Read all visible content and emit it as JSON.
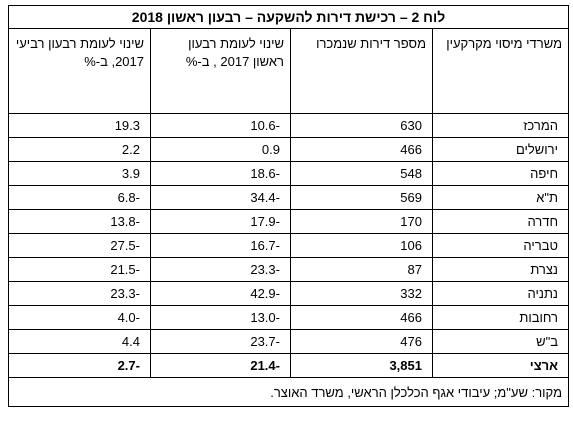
{
  "table": {
    "title": "לוח 2 – רכישת דירות להשקעה – רבעון ראשון 2018",
    "headers": [
      "משרדי מיסוי מקרקעין",
      "מספר דירות שנמכרו",
      "שינוי לעומת רבעון ראשון 2017 , ב-%",
      "שינוי לעומת רבעון רביעי 2017, ב-%"
    ],
    "rows": [
      [
        "המרכז",
        "630",
        "-10.6",
        "19.3"
      ],
      [
        "ירושלים",
        "466",
        "0.9",
        "2.2"
      ],
      [
        "חיפה",
        "548",
        "-18.6",
        "3.9"
      ],
      [
        "ת\"א",
        "569",
        "-34.4",
        "-6.8"
      ],
      [
        "חדרה",
        "170",
        "-17.9",
        "-13.8"
      ],
      [
        "טבריה",
        "106",
        "-16.7",
        "-27.5"
      ],
      [
        "נצרת",
        "87",
        "-23.3",
        "-21.5"
      ],
      [
        "נתניה",
        "332",
        "-42.9",
        "-23.3"
      ],
      [
        "רחובות",
        "466",
        "-13.0",
        "-4.0"
      ],
      [
        "ב\"ש",
        "476",
        "-23.7",
        "4.4"
      ]
    ],
    "total": [
      "ארצי",
      "3,851",
      "-21.4",
      "-2.7"
    ],
    "source": "מקור: שע\"מ; עיבודי אגף הכלכלן הראשי, משרד האוצר."
  }
}
